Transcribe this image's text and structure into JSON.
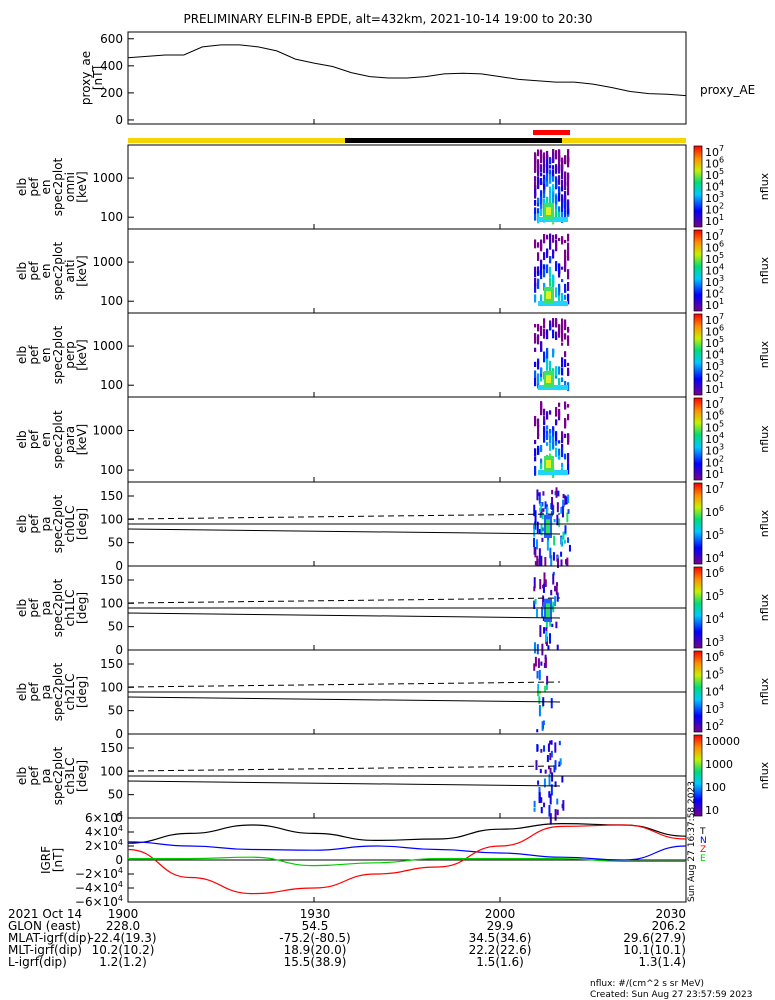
{
  "title": "PRELIMINARY ELFIN-B EPDE, alt=432km, 2021-10-14 19:00 to 20:30",
  "bar_colors": {
    "yellow": "#f5d400",
    "black": "#000000",
    "red": "#ff0000"
  },
  "footer": {
    "units": "nflux: #/(cm^2 s sr MeV)",
    "created": "Created: Sun Aug 27 23:57:59 2023",
    "side_stamp": "Sun Aug 27 16:37:58 2023"
  },
  "chart_data": [
    {
      "type": "line",
      "panel": "proxy_ae",
      "ylabel": [
        "proxy_ae",
        "[nT]"
      ],
      "series_label": "proxy_AE",
      "yticks": [
        "600",
        "400",
        "200",
        "0"
      ],
      "ylim": [
        -30,
        650
      ],
      "x_minutes": [
        0,
        3,
        6,
        9,
        12,
        15,
        18,
        21,
        24,
        27,
        30,
        33,
        36,
        39,
        42,
        45,
        48,
        51,
        54,
        57,
        60,
        63,
        66,
        69,
        72,
        75,
        78,
        81,
        84,
        87,
        90
      ],
      "values": [
        460,
        470,
        480,
        480,
        540,
        555,
        555,
        540,
        510,
        450,
        420,
        395,
        350,
        320,
        310,
        310,
        320,
        340,
        345,
        340,
        320,
        300,
        290,
        280,
        280,
        265,
        240,
        210,
        195,
        190,
        180
      ]
    },
    {
      "type": "heatmap",
      "panel": "omni",
      "ylabel": [
        "elb",
        "pef",
        "en",
        "spec2plot",
        "omni",
        "[keV]"
      ],
      "yticks": [
        "1000",
        "100"
      ],
      "ylog": true,
      "cbar_label": "nflux",
      "cbar_ticks": [
        "10^7",
        "10^6",
        "10^5",
        "10^4",
        "10^3",
        "10^2",
        "10^1"
      ]
    },
    {
      "type": "heatmap",
      "panel": "anti",
      "ylabel": [
        "elb",
        "pef",
        "en",
        "spec2plot",
        "anti",
        "[keV]"
      ],
      "yticks": [
        "1000",
        "100"
      ],
      "ylog": true,
      "cbar_label": "nflux",
      "cbar_ticks": [
        "10^7",
        "10^6",
        "10^5",
        "10^4",
        "10^3",
        "10^2",
        "10^1"
      ]
    },
    {
      "type": "heatmap",
      "panel": "perp",
      "ylabel": [
        "elb",
        "pef",
        "en",
        "spec2plot",
        "perp",
        "[keV]"
      ],
      "yticks": [
        "1000",
        "100"
      ],
      "ylog": true,
      "cbar_label": "nflux",
      "cbar_ticks": [
        "10^7",
        "10^6",
        "10^5",
        "10^4",
        "10^3",
        "10^2",
        "10^1"
      ]
    },
    {
      "type": "heatmap",
      "panel": "para",
      "ylabel": [
        "elb",
        "pef",
        "en",
        "spec2plot",
        "para",
        "[keV]"
      ],
      "yticks": [
        "1000",
        "100"
      ],
      "ylog": true,
      "cbar_label": "nflux",
      "cbar_ticks": [
        "10^7",
        "10^6",
        "10^5",
        "10^4",
        "10^3",
        "10^2",
        "10^1"
      ]
    },
    {
      "type": "heatmap",
      "panel": "ch0LC",
      "ylabel": [
        "elb",
        "pef",
        "pa",
        "spec2plot",
        "ch0LC",
        "[deg]"
      ],
      "yticks": [
        "150",
        "100",
        "50",
        "0"
      ],
      "ylim": [
        0,
        180
      ],
      "cbar_label": "nflux",
      "cbar_ticks": [
        "10^7",
        "10^6",
        "10^5",
        "10^4"
      ],
      "dashed_line_deg": 105,
      "solid_line_deg": 75
    },
    {
      "type": "heatmap",
      "panel": "ch1LC",
      "ylabel": [
        "elb",
        "pef",
        "pa",
        "spec2plot",
        "ch1LC",
        "[deg]"
      ],
      "yticks": [
        "150",
        "100",
        "50",
        "0"
      ],
      "ylim": [
        0,
        180
      ],
      "cbar_label": "nflux",
      "cbar_ticks": [
        "10^6",
        "10^5",
        "10^4",
        "10^3"
      ],
      "dashed_line_deg": 105,
      "solid_line_deg": 75
    },
    {
      "type": "heatmap",
      "panel": "ch2LC",
      "ylabel": [
        "elb",
        "pef",
        "pa",
        "spec2plot",
        "ch2LC",
        "[deg]"
      ],
      "yticks": [
        "150",
        "100",
        "50",
        "0"
      ],
      "ylim": [
        0,
        180
      ],
      "cbar_label": "nflux",
      "cbar_ticks": [
        "10^6",
        "10^5",
        "10^4",
        "10^3",
        "10^2"
      ],
      "dashed_line_deg": 105,
      "solid_line_deg": 75
    },
    {
      "type": "heatmap",
      "panel": "ch3LC",
      "ylabel": [
        "elb",
        "pef",
        "pa",
        "spec2plot",
        "ch3LC",
        "[deg]"
      ],
      "yticks": [
        "150",
        "100",
        "50",
        "0"
      ],
      "ylim": [
        0,
        180
      ],
      "cbar_label": "nflux",
      "cbar_ticks": [
        "10000",
        "1000",
        "100",
        "10"
      ],
      "dashed_line_deg": 105,
      "solid_line_deg": 75
    },
    {
      "type": "line",
      "panel": "igrf",
      "ylabel": [
        "IGRF",
        "[nT]"
      ],
      "yticks": [
        "6×10^4",
        "4×10^4",
        "2×10^4",
        "0",
        "−2×10^4",
        "−4×10^4",
        "−6×10^4"
      ],
      "ylim": [
        -60000,
        60000
      ],
      "legend": [
        "T",
        "N",
        "Z",
        "E"
      ],
      "series": [
        {
          "name": "T",
          "color": "#000000",
          "x_minutes": [
            0,
            10,
            20,
            30,
            40,
            50,
            60,
            70,
            80,
            90
          ],
          "values": [
            24000,
            38000,
            50000,
            38000,
            28000,
            30000,
            44000,
            52000,
            50000,
            34000
          ]
        },
        {
          "name": "N",
          "color": "#0000ff",
          "x_minutes": [
            0,
            10,
            20,
            30,
            40,
            50,
            60,
            70,
            80,
            90
          ],
          "values": [
            26000,
            20000,
            15000,
            14000,
            20000,
            15000,
            10000,
            4000,
            0,
            20000
          ]
        },
        {
          "name": "Z",
          "color": "#ff0000",
          "x_minutes": [
            0,
            10,
            20,
            30,
            40,
            50,
            60,
            70,
            80,
            90
          ],
          "values": [
            15000,
            -25000,
            -48000,
            -40000,
            -20000,
            -10000,
            20000,
            48000,
            50000,
            30000
          ]
        },
        {
          "name": "E",
          "color": "#00cc00",
          "x_minutes": [
            0,
            10,
            20,
            30,
            40,
            50,
            60,
            70,
            80,
            90
          ],
          "values": [
            2000,
            2000,
            4000,
            -8000,
            -4000,
            2000,
            2000,
            2000,
            -2000,
            -2000
          ]
        }
      ]
    }
  ],
  "x_axis": {
    "ticks": [
      "1900",
      "1930",
      "2000",
      "2030"
    ],
    "rows": [
      {
        "label": "2021 Oct 14",
        "values": [
          "",
          "",
          "",
          ""
        ]
      },
      {
        "label": "GLON (east)",
        "values": [
          "228.0",
          "54.5",
          "29.9",
          "206.2"
        ]
      },
      {
        "label": "MLAT-igrf(dip)",
        "values": [
          "-22.4(19.3)",
          "-75.2(-80.5)",
          "34.5(34.6)",
          "29.6(27.9)"
        ]
      },
      {
        "label": "MLT-igrf(dip)",
        "values": [
          "10.2(10.2)",
          "18.9(20.0)",
          "22.2(22.6)",
          "10.1(10.1)"
        ]
      },
      {
        "label": "L-igrf(dip)",
        "values": [
          "1.2(1.2)",
          "15.5(38.9)",
          "1.5(1.6)",
          "1.3(1.4)"
        ]
      }
    ]
  }
}
